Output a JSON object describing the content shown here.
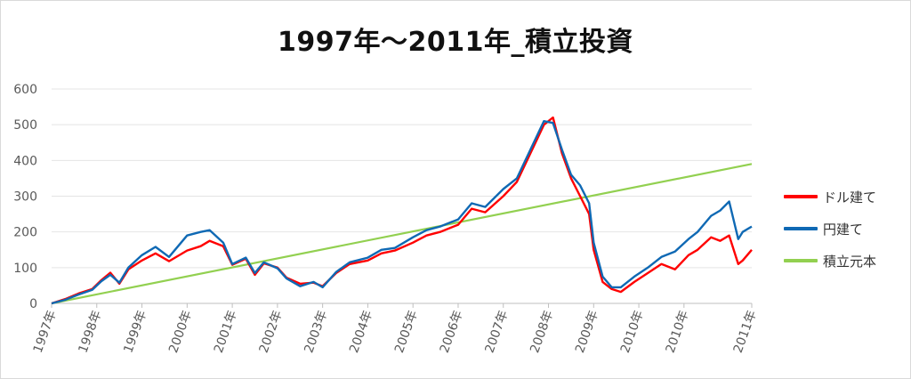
{
  "chart_data": {
    "type": "line",
    "title": "1997年～2011年_積立投資",
    "xlabel": "",
    "ylabel": "",
    "ylim": [
      0,
      600
    ],
    "yticks": [
      "0",
      "100",
      "200",
      "300",
      "400",
      "500",
      "600"
    ],
    "xticks": [
      "1997年",
      "1998年",
      "1999年",
      "2000年",
      "2001年",
      "2002年",
      "2003年",
      "2004年",
      "2005年",
      "2006年",
      "2007年",
      "2008年",
      "2009年",
      "2010年",
      "2010年",
      "2011年"
    ],
    "grid": "horizontal",
    "legend_position": "right",
    "series": [
      {
        "name": "ドル建て",
        "color": "#ff0000",
        "x": [
          0,
          0.3,
          0.6,
          0.9,
          1.1,
          1.3,
          1.5,
          1.7,
          2.0,
          2.3,
          2.6,
          3.0,
          3.3,
          3.5,
          3.8,
          4.0,
          4.3,
          4.5,
          4.7,
          5.0,
          5.2,
          5.5,
          5.8,
          6.0,
          6.3,
          6.6,
          7.0,
          7.3,
          7.6,
          8.0,
          8.3,
          8.6,
          9.0,
          9.3,
          9.6,
          10.0,
          10.3,
          10.6,
          10.9,
          11.1,
          11.3,
          11.5,
          11.7,
          11.9,
          12.0,
          12.2,
          12.4,
          12.6,
          12.9,
          13.2,
          13.5,
          13.8,
          14.1,
          14.3,
          14.6,
          14.8,
          15.0,
          15.2,
          15.3,
          15.5
        ],
        "values": [
          0,
          12,
          28,
          40,
          65,
          86,
          55,
          95,
          120,
          140,
          118,
          148,
          160,
          175,
          160,
          108,
          125,
          80,
          112,
          100,
          72,
          55,
          58,
          48,
          85,
          110,
          120,
          140,
          148,
          170,
          190,
          200,
          220,
          265,
          255,
          300,
          340,
          420,
          500,
          520,
          420,
          350,
          300,
          250,
          150,
          60,
          40,
          32,
          60,
          85,
          110,
          95,
          135,
          150,
          185,
          175,
          190,
          110,
          120,
          150
        ]
      },
      {
        "name": "円建て",
        "color": "#0f69b4",
        "x": [
          0,
          0.3,
          0.6,
          0.9,
          1.1,
          1.3,
          1.5,
          1.7,
          2.0,
          2.3,
          2.6,
          3.0,
          3.3,
          3.5,
          3.8,
          4.0,
          4.3,
          4.5,
          4.7,
          5.0,
          5.2,
          5.5,
          5.8,
          6.0,
          6.3,
          6.6,
          7.0,
          7.3,
          7.6,
          8.0,
          8.3,
          8.6,
          9.0,
          9.3,
          9.6,
          10.0,
          10.3,
          10.6,
          10.9,
          11.1,
          11.3,
          11.5,
          11.7,
          11.9,
          12.0,
          12.2,
          12.4,
          12.6,
          12.9,
          13.2,
          13.5,
          13.8,
          14.1,
          14.3,
          14.6,
          14.8,
          15.0,
          15.2,
          15.3,
          15.5
        ],
        "values": [
          0,
          10,
          25,
          38,
          62,
          80,
          58,
          100,
          135,
          158,
          130,
          190,
          200,
          205,
          170,
          110,
          128,
          85,
          115,
          98,
          70,
          48,
          60,
          45,
          88,
          115,
          128,
          150,
          155,
          185,
          205,
          215,
          235,
          280,
          270,
          320,
          350,
          430,
          510,
          505,
          430,
          360,
          330,
          280,
          170,
          75,
          45,
          45,
          75,
          100,
          130,
          145,
          180,
          200,
          245,
          260,
          285,
          180,
          200,
          215
        ]
      },
      {
        "name": "積立元本",
        "color": "#92d050",
        "x": [
          0,
          15.5
        ],
        "values": [
          0,
          390
        ]
      }
    ]
  }
}
